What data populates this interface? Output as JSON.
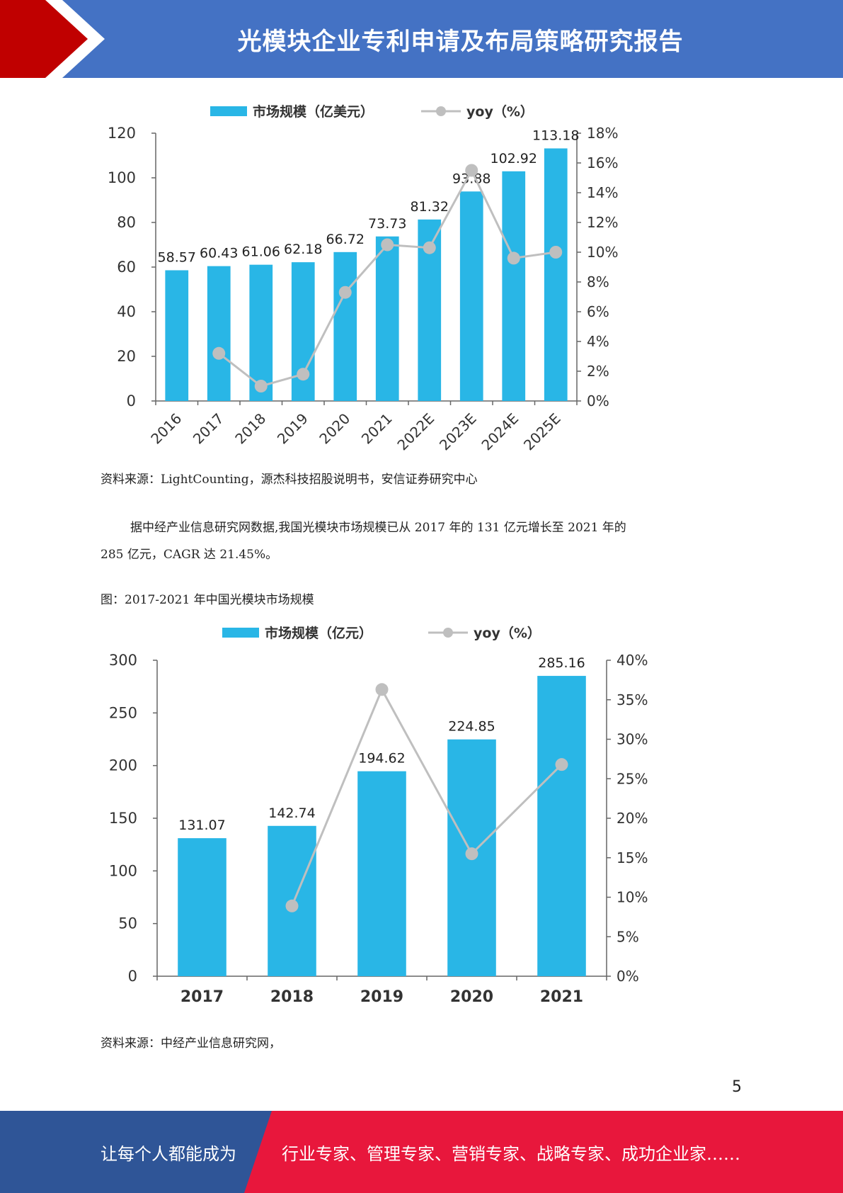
{
  "header": {
    "title": "光模块企业专利申请及布局策略研究报告"
  },
  "colors": {
    "header_blue": "#4472c4",
    "header_red": "#c00000",
    "bar": "#29b6e6",
    "line": "#bfbfbf",
    "footer_blue": "#2f5597",
    "footer_red": "#e8173c"
  },
  "chart_data": [
    {
      "type": "bar",
      "categories": [
        "2016",
        "2017",
        "2018",
        "2019",
        "2020",
        "2021",
        "2022E",
        "2023E",
        "2024E",
        "2025E"
      ],
      "series": [
        {
          "name": "市场规模（亿美元）",
          "type": "bar",
          "axis": "left",
          "values": [
            58.57,
            60.43,
            61.06,
            62.18,
            66.72,
            73.73,
            81.32,
            93.88,
            102.92,
            113.18
          ]
        },
        {
          "name": "yoy（%）",
          "type": "line",
          "axis": "right",
          "values": [
            null,
            3.2,
            1.0,
            1.8,
            7.3,
            10.5,
            10.3,
            15.5,
            9.6,
            10.0
          ]
        }
      ],
      "ylim_left": [
        0,
        120
      ],
      "yticks_left": [
        "0",
        "20",
        "40",
        "60",
        "80",
        "100",
        "120"
      ],
      "ylim_right": [
        0,
        18
      ],
      "yticks_right": [
        "0%",
        "2%",
        "4%",
        "6%",
        "8%",
        "10%",
        "12%",
        "14%",
        "16%",
        "18%"
      ],
      "data_labels": [
        "58.57",
        "60.43",
        "61.06",
        "62.18",
        "66.72",
        "73.73",
        "81.32",
        "93.88",
        "102.92",
        "113.18"
      ],
      "legend": "top-center",
      "grid": false
    },
    {
      "type": "bar",
      "categories": [
        "2017",
        "2018",
        "2019",
        "2020",
        "2021"
      ],
      "series": [
        {
          "name": "市场规模（亿元）",
          "type": "bar",
          "axis": "left",
          "values": [
            131.07,
            142.74,
            194.62,
            224.85,
            285.16
          ]
        },
        {
          "name": "yoy（%）",
          "type": "line",
          "axis": "right",
          "values": [
            null,
            8.9,
            36.3,
            15.5,
            26.8
          ]
        }
      ],
      "ylim_left": [
        0,
        300
      ],
      "yticks_left": [
        "0",
        "50",
        "100",
        "150",
        "200",
        "250",
        "300"
      ],
      "ylim_right": [
        0,
        40
      ],
      "yticks_right": [
        "0%",
        "5%",
        "10%",
        "15%",
        "20%",
        "25%",
        "30%",
        "35%",
        "40%"
      ],
      "data_labels": [
        "131.07",
        "142.74",
        "194.62",
        "224.85",
        "285.16"
      ],
      "legend": "top-center",
      "grid": false
    }
  ],
  "source1": "资料来源：LightCounting，源杰科技招股说明书，安信证券研究中心",
  "paragraph": {
    "line1": "据中经产业信息研究网数据,我国光模块市场规模已从 2017 年的 131 亿元增长至 2021 年的",
    "line2": "285 亿元，CAGR 达 21.45%。"
  },
  "figure2_caption": "图：2017-2021 年中国光模块市场规模",
  "source2": "资料来源：中经产业信息研究网，",
  "page_number": "5",
  "footer": {
    "left": "让每个人都能成为",
    "right": "行业专家、管理专家、营销专家、战略专家、成功企业家……"
  }
}
